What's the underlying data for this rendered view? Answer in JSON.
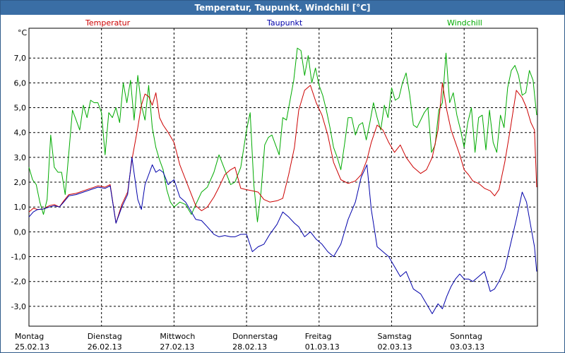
{
  "window": {
    "title": "Temperatur, Taupunkt, Windchill [°C]"
  },
  "chart_data": {
    "type": "line",
    "title": "Temperatur, Taupunkt, Windchill [°C]",
    "ylabel": "°C",
    "ylim": [
      -3.8,
      8.2
    ],
    "yticks": [
      7.0,
      6.0,
      5.0,
      4.0,
      3.0,
      2.0,
      1.0,
      0.0,
      -1.0,
      -2.0,
      -3.0
    ],
    "ytick_labels": [
      "7,0",
      "6,0",
      "5,0",
      "4,0",
      "3,0",
      "2,0",
      "1,0",
      "0,0",
      "-1,0",
      "-2,0",
      "-3,0"
    ],
    "xlim": [
      0,
      7
    ],
    "x_unit": "days since first label",
    "categories": [
      {
        "day": "Montag",
        "date": "25.02.13"
      },
      {
        "day": "Dienstag",
        "date": "26.02.13"
      },
      {
        "day": "Mittwoch",
        "date": "27.02.13"
      },
      {
        "day": "Donnerstag",
        "date": "28.02.13"
      },
      {
        "day": "Freitag",
        "date": "01.03.13"
      },
      {
        "day": "Samstag",
        "date": "02.03.13"
      },
      {
        "day": "Sonntag",
        "date": "03.03.13"
      }
    ],
    "grid": true,
    "legend_position": "top",
    "series": [
      {
        "name": "Temperatur",
        "color": "#cc0000",
        "x": [
          0.0,
          0.06,
          0.12,
          0.2,
          0.28,
          0.35,
          0.42,
          0.48,
          0.55,
          0.65,
          0.75,
          0.85,
          0.95,
          1.05,
          1.12,
          1.2,
          1.28,
          1.36,
          1.42,
          1.5,
          1.55,
          1.6,
          1.65,
          1.7,
          1.75,
          1.8,
          1.85,
          1.92,
          2.0,
          2.08,
          2.16,
          2.24,
          2.3,
          2.38,
          2.46,
          2.55,
          2.62,
          2.7,
          2.78,
          2.84,
          2.92,
          3.0,
          3.08,
          3.16,
          3.24,
          3.32,
          3.42,
          3.5,
          3.58,
          3.66,
          3.72,
          3.8,
          3.88,
          3.96,
          4.04,
          4.12,
          4.2,
          4.3,
          4.4,
          4.5,
          4.58,
          4.66,
          4.72,
          4.8,
          4.88,
          4.96,
          5.04,
          5.12,
          5.2,
          5.3,
          5.4,
          5.48,
          5.56,
          5.64,
          5.7,
          5.76,
          5.82,
          5.88,
          5.94,
          6.0,
          6.06,
          6.12,
          6.2,
          6.28,
          6.36,
          6.42,
          6.48,
          6.56,
          6.64,
          6.72,
          6.8,
          6.86,
          6.92,
          6.97,
          7.0
        ],
        "y": [
          0.8,
          0.95,
          0.9,
          0.92,
          1.05,
          1.1,
          1.0,
          1.25,
          1.5,
          1.55,
          1.65,
          1.75,
          1.85,
          1.8,
          1.9,
          0.35,
          1.1,
          1.6,
          2.9,
          4.2,
          5.1,
          5.55,
          5.45,
          5.1,
          5.6,
          4.6,
          4.3,
          4.0,
          3.6,
          2.7,
          2.1,
          1.5,
          1.05,
          0.85,
          1.0,
          1.4,
          1.8,
          2.3,
          2.5,
          2.6,
          1.75,
          1.7,
          1.65,
          1.6,
          1.3,
          1.2,
          1.25,
          1.35,
          2.3,
          3.4,
          4.9,
          5.7,
          5.9,
          5.2,
          4.7,
          3.9,
          2.8,
          2.1,
          1.95,
          2.05,
          2.3,
          2.9,
          3.6,
          4.3,
          4.1,
          3.6,
          3.2,
          3.5,
          3.0,
          2.6,
          2.35,
          2.5,
          3.0,
          4.1,
          6.0,
          4.9,
          4.1,
          3.6,
          3.1,
          2.5,
          2.3,
          2.05,
          1.95,
          1.75,
          1.65,
          1.45,
          1.7,
          2.8,
          4.2,
          5.7,
          5.4,
          5.0,
          4.4,
          4.1,
          1.8
        ]
      },
      {
        "name": "Taupunkt",
        "color": "#0000aa",
        "x": [
          0.0,
          0.06,
          0.12,
          0.2,
          0.28,
          0.35,
          0.42,
          0.48,
          0.55,
          0.65,
          0.75,
          0.85,
          0.95,
          1.05,
          1.12,
          1.2,
          1.28,
          1.36,
          1.42,
          1.5,
          1.55,
          1.6,
          1.65,
          1.7,
          1.75,
          1.8,
          1.85,
          1.92,
          2.0,
          2.08,
          2.16,
          2.24,
          2.3,
          2.38,
          2.46,
          2.55,
          2.62,
          2.7,
          2.78,
          2.84,
          2.92,
          3.0,
          3.08,
          3.16,
          3.24,
          3.32,
          3.42,
          3.5,
          3.58,
          3.66,
          3.72,
          3.8,
          3.88,
          3.96,
          4.04,
          4.12,
          4.2,
          4.3,
          4.4,
          4.5,
          4.58,
          4.66,
          4.72,
          4.8,
          4.88,
          4.96,
          5.04,
          5.12,
          5.2,
          5.3,
          5.4,
          5.48,
          5.56,
          5.64,
          5.7,
          5.76,
          5.82,
          5.88,
          5.94,
          6.0,
          6.06,
          6.12,
          6.2,
          6.28,
          6.36,
          6.42,
          6.48,
          6.56,
          6.64,
          6.72,
          6.8,
          6.86,
          6.92,
          6.97,
          7.0
        ],
        "y": [
          0.6,
          0.8,
          0.9,
          0.92,
          1.0,
          1.05,
          1.0,
          1.2,
          1.45,
          1.5,
          1.6,
          1.7,
          1.8,
          1.75,
          1.85,
          0.35,
          1.0,
          1.5,
          3.0,
          1.3,
          0.9,
          1.9,
          2.3,
          2.7,
          2.4,
          2.5,
          2.4,
          1.9,
          2.1,
          1.4,
          1.2,
          0.8,
          0.5,
          0.45,
          0.2,
          -0.1,
          -0.2,
          -0.15,
          -0.2,
          -0.2,
          -0.1,
          -0.1,
          -0.8,
          -0.6,
          -0.5,
          -0.1,
          0.3,
          0.8,
          0.6,
          0.35,
          0.2,
          -0.2,
          0.0,
          -0.3,
          -0.5,
          -0.8,
          -1.0,
          -0.5,
          0.5,
          1.2,
          2.2,
          2.7,
          0.9,
          -0.6,
          -0.8,
          -1.0,
          -1.4,
          -1.8,
          -1.6,
          -2.3,
          -2.5,
          -2.9,
          -3.3,
          -2.9,
          -3.1,
          -2.6,
          -2.2,
          -1.9,
          -1.7,
          -1.9,
          -1.9,
          -2.0,
          -1.8,
          -1.6,
          -2.4,
          -2.3,
          -2.0,
          -1.5,
          -0.5,
          0.5,
          1.6,
          1.2,
          0.2,
          -0.6,
          -1.6
        ]
      },
      {
        "name": "Windchill",
        "color": "#00aa00",
        "x": [
          0.0,
          0.05,
          0.1,
          0.15,
          0.2,
          0.25,
          0.3,
          0.35,
          0.4,
          0.45,
          0.5,
          0.55,
          0.6,
          0.65,
          0.7,
          0.75,
          0.8,
          0.85,
          0.9,
          0.95,
          1.0,
          1.05,
          1.1,
          1.15,
          1.2,
          1.25,
          1.3,
          1.35,
          1.4,
          1.45,
          1.5,
          1.55,
          1.6,
          1.65,
          1.7,
          1.75,
          1.8,
          1.85,
          1.9,
          1.95,
          2.0,
          2.08,
          2.16,
          2.24,
          2.3,
          2.38,
          2.46,
          2.55,
          2.62,
          2.7,
          2.78,
          2.84,
          2.92,
          3.0,
          3.05,
          3.1,
          3.15,
          3.2,
          3.25,
          3.3,
          3.35,
          3.4,
          3.45,
          3.5,
          3.55,
          3.6,
          3.65,
          3.7,
          3.75,
          3.8,
          3.85,
          3.9,
          3.95,
          4.0,
          4.05,
          4.1,
          4.15,
          4.2,
          4.25,
          4.3,
          4.35,
          4.4,
          4.45,
          4.5,
          4.55,
          4.6,
          4.65,
          4.7,
          4.75,
          4.8,
          4.85,
          4.9,
          4.95,
          5.0,
          5.05,
          5.1,
          5.15,
          5.2,
          5.25,
          5.3,
          5.35,
          5.4,
          5.45,
          5.5,
          5.55,
          5.6,
          5.65,
          5.7,
          5.75,
          5.8,
          5.85,
          5.9,
          5.95,
          6.0,
          6.05,
          6.1,
          6.15,
          6.2,
          6.25,
          6.3,
          6.35,
          6.4,
          6.45,
          6.5,
          6.55,
          6.6,
          6.65,
          6.7,
          6.75,
          6.8,
          6.85,
          6.9,
          6.95,
          7.0
        ],
        "y": [
          2.6,
          2.1,
          1.9,
          1.2,
          0.7,
          1.3,
          3.9,
          2.6,
          2.4,
          2.4,
          1.5,
          3.2,
          4.9,
          4.5,
          4.1,
          5.1,
          4.6,
          5.3,
          5.2,
          5.2,
          4.8,
          3.1,
          4.8,
          4.6,
          5.0,
          4.4,
          6.0,
          5.2,
          6.1,
          4.5,
          6.3,
          5.1,
          4.5,
          5.9,
          4.2,
          3.4,
          2.9,
          2.5,
          1.7,
          1.2,
          1.0,
          1.2,
          1.1,
          0.7,
          1.1,
          1.6,
          1.8,
          2.4,
          3.1,
          2.5,
          1.9,
          2.0,
          2.6,
          4.1,
          4.8,
          1.9,
          0.4,
          1.6,
          3.5,
          3.8,
          3.9,
          3.5,
          3.1,
          4.6,
          4.5,
          5.3,
          6.1,
          7.4,
          7.3,
          6.3,
          7.1,
          6.0,
          6.6,
          5.9,
          5.5,
          4.9,
          4.2,
          3.4,
          3.0,
          2.5,
          3.5,
          4.6,
          4.6,
          3.9,
          4.3,
          4.4,
          3.7,
          4.4,
          5.2,
          4.6,
          4.1,
          5.1,
          4.6,
          5.8,
          5.3,
          5.4,
          6.0,
          6.4,
          5.5,
          4.3,
          4.2,
          4.5,
          4.8,
          5.0,
          3.2,
          3.5,
          4.9,
          5.2,
          7.2,
          5.2,
          5.6,
          4.7,
          4.1,
          3.4,
          4.4,
          5.0,
          3.2,
          4.6,
          4.7,
          3.3,
          4.9,
          3.6,
          3.2,
          4.7,
          4.2,
          5.8,
          6.5,
          6.7,
          6.3,
          5.5,
          5.6,
          6.5,
          6.1,
          4.7
        ]
      }
    ]
  }
}
